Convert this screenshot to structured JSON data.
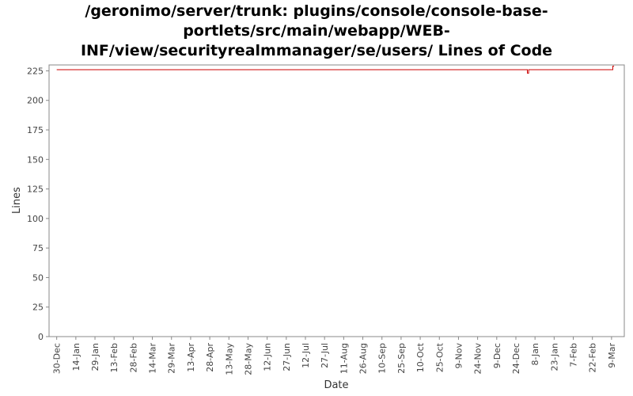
{
  "chart_data": {
    "type": "line",
    "title_lines": [
      "/geronimo/server/trunk: plugins/console/console-base-",
      "portlets/src/main/webapp/WEB-",
      "INF/view/securityrealmmanager/se/users/ Lines of Code"
    ],
    "xlabel": "Date",
    "ylabel": "Lines",
    "ylim": [
      0,
      230
    ],
    "y_ticks": [
      0,
      25,
      50,
      75,
      100,
      125,
      150,
      175,
      200,
      225
    ],
    "x_tick_labels": [
      "30-Dec",
      "14-Jan",
      "29-Jan",
      "13-Feb",
      "28-Feb",
      "14-Mar",
      "29-Mar",
      "13-Apr",
      "28-Apr",
      "13-May",
      "28-May",
      "12-Jun",
      "27-Jun",
      "12-Jul",
      "27-Jul",
      "11-Aug",
      "26-Aug",
      "10-Sep",
      "25-Sep",
      "10-Oct",
      "25-Oct",
      "9-Nov",
      "24-Nov",
      "9-Dec",
      "24-Dec",
      "8-Jan",
      "23-Jan",
      "7-Feb",
      "22-Feb",
      "9-Mar"
    ],
    "x_tick_step_days": 15,
    "xlim_days": [
      -6,
      445
    ],
    "series": [
      {
        "color": "#cc0000",
        "points": [
          {
            "x": 0,
            "y": 226
          },
          {
            "x": 369,
            "y": 226
          },
          {
            "x": 369,
            "y": 223
          },
          {
            "x": 370,
            "y": 223
          },
          {
            "x": 370,
            "y": 226
          },
          {
            "x": 436,
            "y": 226
          },
          {
            "x": 436,
            "y": 229
          },
          {
            "x": 437,
            "y": 229
          }
        ]
      }
    ],
    "grid": false,
    "plot_background": "#ffffff",
    "axis_color": "#888888"
  }
}
